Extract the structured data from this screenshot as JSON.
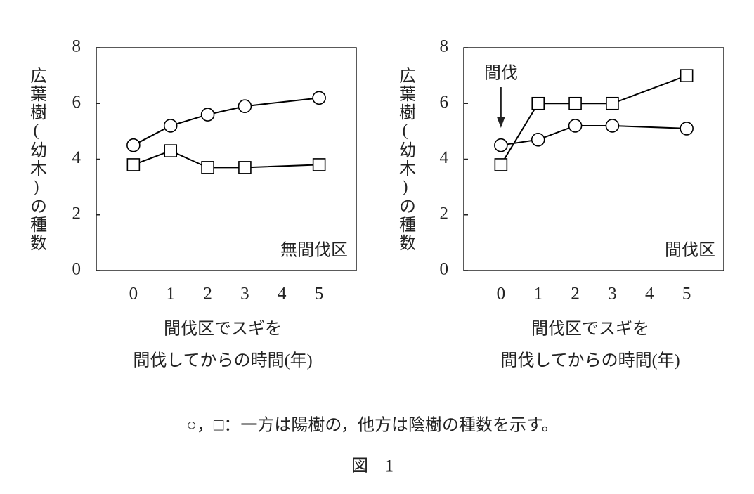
{
  "chart_data": [
    {
      "type": "line",
      "ylabel": "広葉樹(幼木)の種数",
      "xlabel": [
        "間伐区でスギを",
        "間伐してからの時間(年)"
      ],
      "panel_label": "無間伐区",
      "x": [
        0,
        1,
        2,
        3,
        5
      ],
      "series": [
        {
          "marker": "circle",
          "color": "#000000",
          "values": [
            4.5,
            5.2,
            5.6,
            5.9,
            6.2
          ]
        },
        {
          "marker": "square",
          "color": "#000000",
          "values": [
            3.8,
            4.3,
            3.7,
            3.7,
            3.8
          ]
        }
      ],
      "xlim": [
        -1,
        6
      ],
      "xticks": [
        0,
        1,
        2,
        3,
        4,
        5
      ],
      "ylim": [
        0,
        8
      ],
      "yticks": [
        0,
        2,
        4,
        6,
        8
      ]
    },
    {
      "type": "line",
      "ylabel": "広葉樹(幼木)の種数",
      "xlabel": [
        "間伐区でスギを",
        "間伐してからの時間(年)"
      ],
      "panel_label": "間伐区",
      "annotation": "間伐",
      "x": [
        0,
        1,
        2,
        3,
        5
      ],
      "series": [
        {
          "marker": "circle",
          "color": "#000000",
          "values": [
            4.5,
            4.7,
            5.2,
            5.2,
            5.1
          ]
        },
        {
          "marker": "square",
          "color": "#000000",
          "values": [
            3.8,
            6.0,
            6.0,
            6.0,
            7.0
          ]
        }
      ],
      "xlim": [
        -1,
        6
      ],
      "xticks": [
        0,
        1,
        2,
        3,
        4,
        5
      ],
      "ylim": [
        0,
        8
      ],
      "yticks": [
        0,
        2,
        4,
        6,
        8
      ]
    }
  ],
  "caption": "○，□：一方は陽樹の，他方は陰樹の種数を示す。",
  "figure_label": "図　1"
}
